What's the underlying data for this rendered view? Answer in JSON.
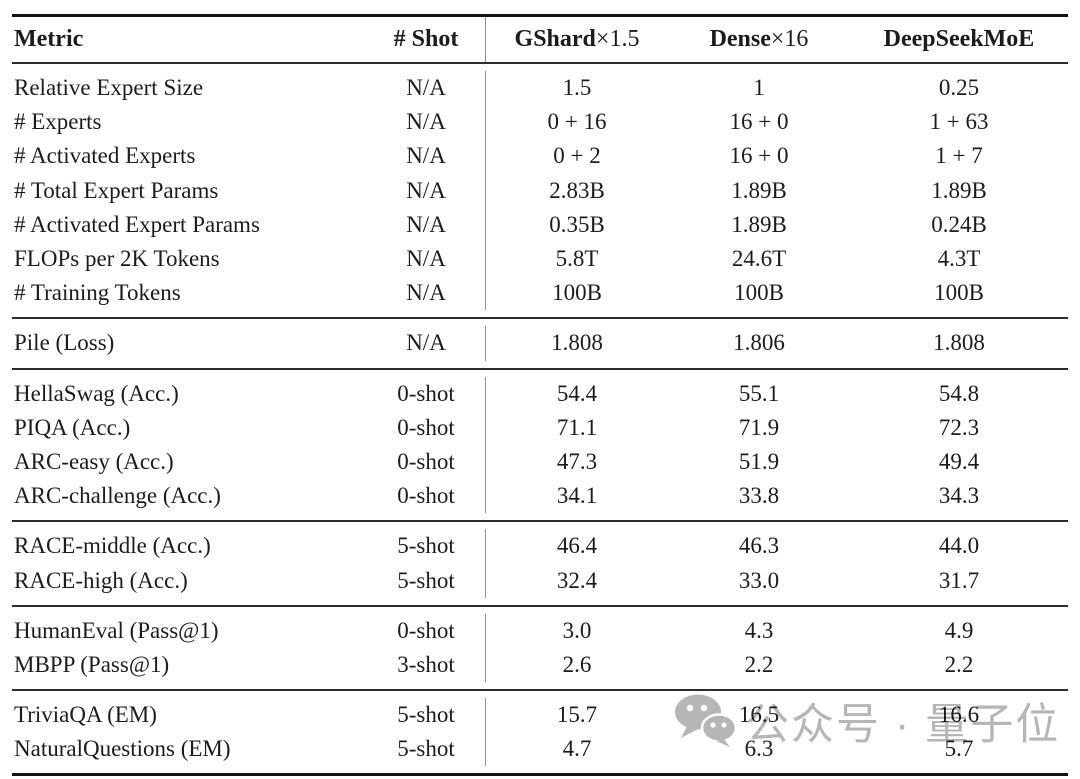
{
  "table": {
    "columns": [
      {
        "bold": "Metric",
        "rest": ""
      },
      {
        "bold": "# Shot",
        "rest": ""
      },
      {
        "bold": "GShard",
        "rest": "×1.5"
      },
      {
        "bold": "Dense",
        "rest": "×16"
      },
      {
        "bold": "DeepSeekMoE",
        "rest": ""
      }
    ],
    "groups": [
      {
        "name": "architecture",
        "rows": [
          [
            "Relative Expert Size",
            "N/A",
            "1.5",
            "1",
            "0.25"
          ],
          [
            "# Experts",
            "N/A",
            "0 + 16",
            "16 + 0",
            "1 + 63"
          ],
          [
            "# Activated Experts",
            "N/A",
            "0 + 2",
            "16 + 0",
            "1 + 7"
          ],
          [
            "# Total Expert Params",
            "N/A",
            "2.83B",
            "1.89B",
            "1.89B"
          ],
          [
            "# Activated Expert Params",
            "N/A",
            "0.35B",
            "1.89B",
            "0.24B"
          ],
          [
            "FLOPs per 2K Tokens",
            "N/A",
            "5.8T",
            "24.6T",
            "4.3T"
          ],
          [
            "# Training Tokens",
            "N/A",
            "100B",
            "100B",
            "100B"
          ]
        ]
      },
      {
        "name": "pile",
        "rows": [
          [
            "Pile (Loss)",
            "N/A",
            "1.808",
            "1.806",
            "1.808"
          ]
        ]
      },
      {
        "name": "language-understanding",
        "rows": [
          [
            "HellaSwag (Acc.)",
            "0-shot",
            "54.4",
            "55.1",
            "54.8"
          ],
          [
            "PIQA (Acc.)",
            "0-shot",
            "71.1",
            "71.9",
            "72.3"
          ],
          [
            "ARC-easy (Acc.)",
            "0-shot",
            "47.3",
            "51.9",
            "49.4"
          ],
          [
            "ARC-challenge (Acc.)",
            "0-shot",
            "34.1",
            "33.8",
            "34.3"
          ]
        ]
      },
      {
        "name": "reading-comprehension",
        "rows": [
          [
            "RACE-middle (Acc.)",
            "5-shot",
            "46.4",
            "46.3",
            "44.0"
          ],
          [
            "RACE-high (Acc.)",
            "5-shot",
            "32.4",
            "33.0",
            "31.7"
          ]
        ]
      },
      {
        "name": "code",
        "rows": [
          [
            "HumanEval (Pass@1)",
            "0-shot",
            "3.0",
            "4.3",
            "4.9"
          ],
          [
            "MBPP (Pass@1)",
            "3-shot",
            "2.6",
            "2.2",
            "2.2"
          ]
        ]
      },
      {
        "name": "closed-book-qa",
        "rows": [
          [
            "TriviaQA (EM)",
            "5-shot",
            "15.7",
            "16.5",
            "16.6"
          ],
          [
            "NaturalQuestions (EM)",
            "5-shot",
            "4.7",
            "6.3",
            "5.7"
          ]
        ]
      }
    ]
  },
  "watermark": {
    "text": "公众号 · 量子位",
    "icon": "wechat-icon",
    "color": "#b6b6b6"
  }
}
